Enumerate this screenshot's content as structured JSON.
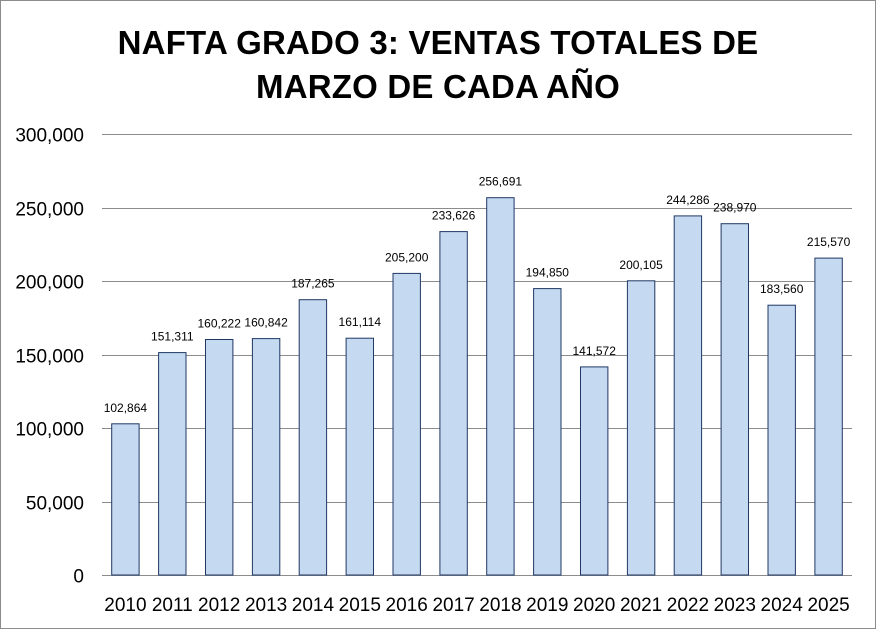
{
  "chart_data": {
    "type": "bar",
    "title_lines": [
      "NAFTA GRADO 3: VENTAS TOTALES DE",
      "MARZO DE CADA AÑO"
    ],
    "categories": [
      "2010",
      "2011",
      "2012",
      "2013",
      "2014",
      "2015",
      "2016",
      "2017",
      "2018",
      "2019",
      "2020",
      "2021",
      "2022",
      "2023",
      "2024",
      "2025"
    ],
    "values": [
      102864,
      151311,
      160222,
      160842,
      187265,
      161114,
      205200,
      233626,
      256691,
      194850,
      141572,
      200105,
      244286,
      238970,
      183560,
      215570
    ],
    "value_labels": [
      "102,864",
      "151,311",
      "160,222",
      "160,842",
      "187,265",
      "161,114",
      "205,200",
      "233,626",
      "256,691",
      "194,850",
      "141,572",
      "200,105",
      "244,286",
      "238,970",
      "183,560",
      "215,570"
    ],
    "y_ticks": [
      0,
      50000,
      100000,
      150000,
      200000,
      250000,
      300000
    ],
    "y_tick_labels": [
      "0",
      "50,000",
      "100,000",
      "150,000",
      "200,000",
      "250,000",
      "300,000"
    ],
    "ylim": [
      0,
      300000
    ],
    "grid": true,
    "legend": "none",
    "colors": {
      "bar_fill": "#c5d9f1",
      "bar_stroke": "#1f3864",
      "grid": "#8c8c8c"
    }
  }
}
